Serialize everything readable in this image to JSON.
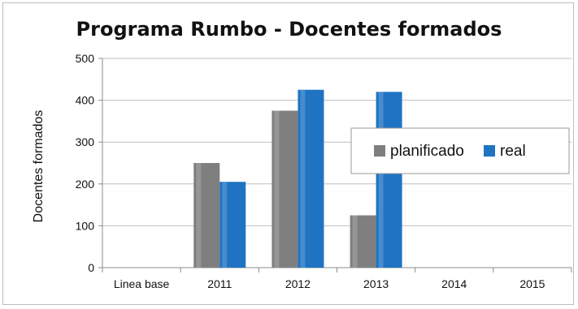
{
  "colors": {
    "planificado": "#7f7f7f",
    "real": "#1f73c2",
    "grid": "#bfbfbf",
    "axis": "#8c8c8c"
  },
  "chart_data": {
    "type": "bar",
    "title": "Programa Rumbo - Docentes formados",
    "ylabel": "Docentes formados",
    "xlabel": "",
    "ylim": [
      0,
      500
    ],
    "yticks": [
      0,
      100,
      200,
      300,
      400,
      500
    ],
    "categories": [
      "Linea base",
      "2011",
      "2012",
      "2013",
      "2014",
      "2015"
    ],
    "series": [
      {
        "name": "planificado",
        "values": [
          null,
          250,
          375,
          125,
          null,
          null
        ]
      },
      {
        "name": "real",
        "values": [
          null,
          205,
          425,
          420,
          null,
          null
        ]
      }
    ],
    "grid": true,
    "legend_position": "right"
  }
}
